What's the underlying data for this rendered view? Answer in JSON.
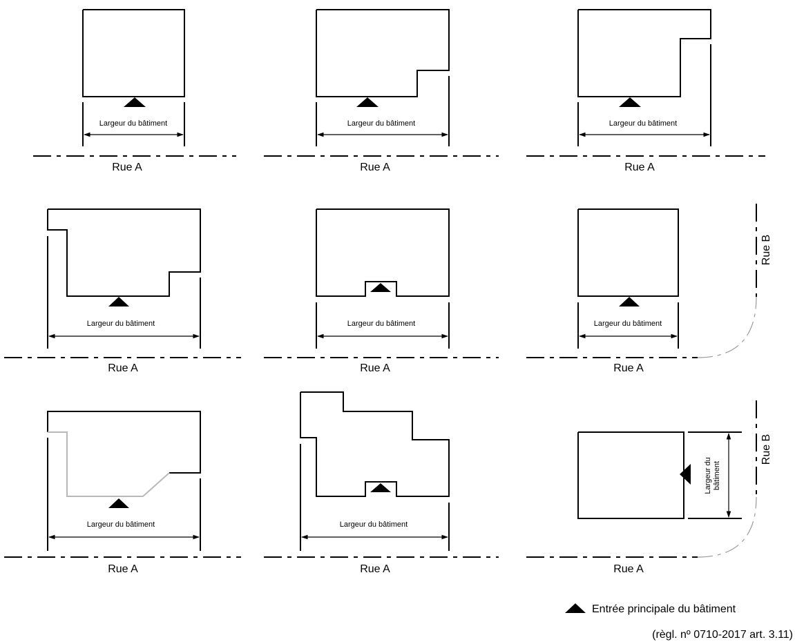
{
  "labels": {
    "width": "Largeur du bâtiment",
    "width_line1": "Largeur du",
    "width_line2": "bâtiment",
    "street_a": "Rue A",
    "street_b": "Rue B"
  },
  "legend": {
    "text": "Entrée principale du bâtiment"
  },
  "reference": "(règl. nº 0710-2017 art. 3.11)"
}
